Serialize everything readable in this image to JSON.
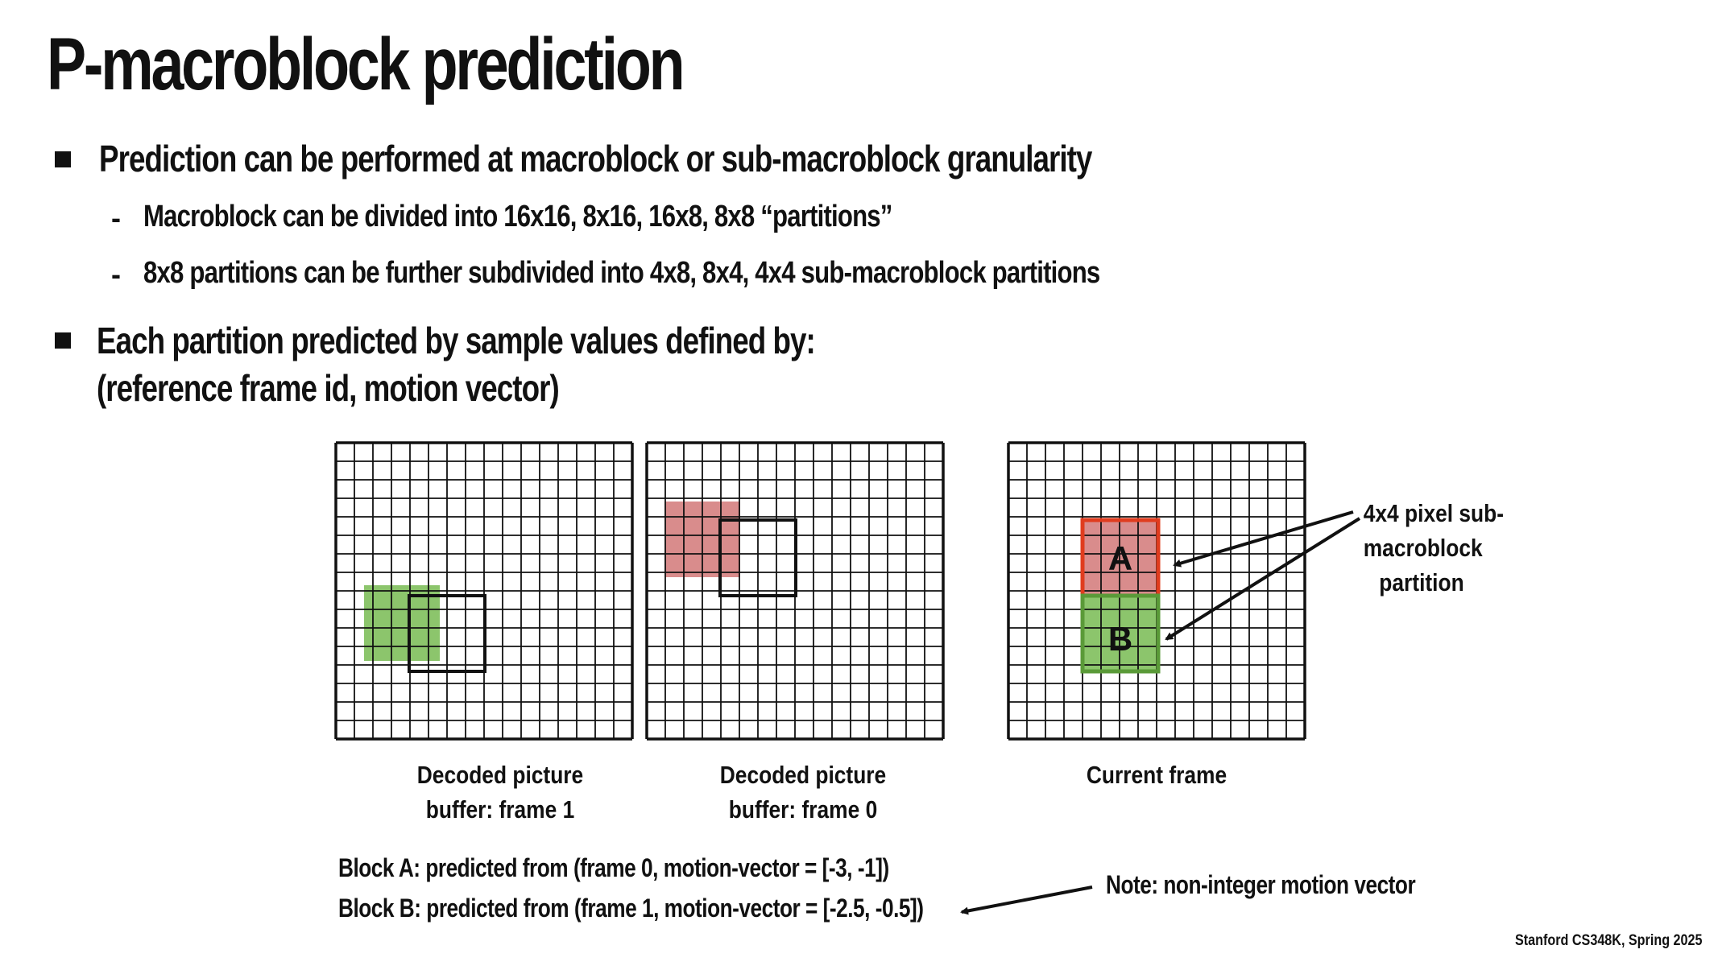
{
  "slide": {
    "title": "P-macroblock prediction",
    "footer": "Stanford CS348K, Spring 2025"
  },
  "bullets": [
    {
      "text": "Prediction can be performed at macroblock or sub-macroblock granularity",
      "sub": [
        "Macroblock can be divided into 16x16, 8x16, 16x8, 8x8 “partitions”",
        "8x8 partitions can be further subdivided into 4x8, 8x4, 4x4 sub-macroblock partitions"
      ]
    },
    {
      "line1": "Each partition predicted by sample values defined by:",
      "line2": "(reference frame id, motion vector)"
    }
  ],
  "diagram": {
    "grid_cells": 16,
    "colors": {
      "green_fill": "#8cc56c",
      "green_border": "#5a9a38",
      "red_fill": "#d98c8c",
      "red_border": "#e03c1e",
      "grid_line": "#111111"
    },
    "frame1_caption": [
      "Decoded picture",
      "buffer: frame 1"
    ],
    "frame0_caption": [
      "Decoded picture",
      "buffer: frame 0"
    ],
    "current_caption": "Current frame",
    "block_a_label": "A",
    "block_b_label": "B",
    "annotation": [
      "4x4 pixel sub-",
      "macroblock",
      "partition"
    ]
  },
  "block_descriptions": {
    "a": "Block A: predicted from (frame 0, motion-vector = [-3, -1])",
    "b": "Block B: predicted from (frame 1, motion-vector = [-2.5, -0.5])",
    "note": "Note: non-integer motion vector"
  }
}
